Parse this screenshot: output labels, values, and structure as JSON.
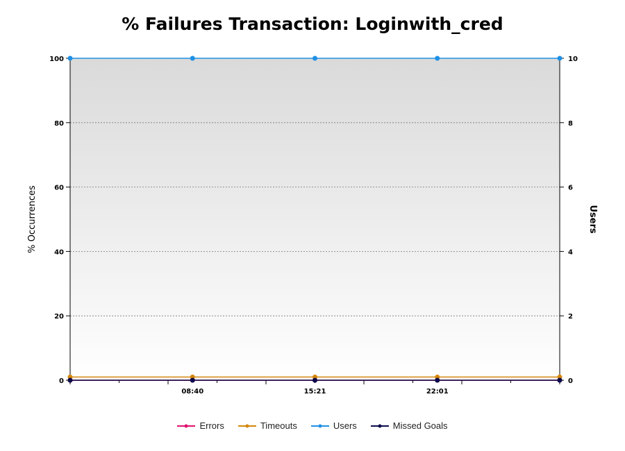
{
  "chart_data": {
    "type": "line",
    "title": "% Failures Transaction: Loginwith_cred",
    "ylabel": "% Occurrences",
    "y2label": "Users",
    "ylim": [
      0,
      100
    ],
    "y2lim": [
      0,
      10
    ],
    "yticks": [
      "0",
      "20",
      "40",
      "60",
      "80",
      "100"
    ],
    "y2ticks": [
      "0",
      "2",
      "4",
      "6",
      "8",
      "10"
    ],
    "xtick_labels": [
      "08:40",
      "15:21",
      "22:01"
    ],
    "grid": true,
    "legend_position": "bottom",
    "series": [
      {
        "name": "Errors",
        "axis": "left",
        "color": "#e0106e",
        "values": [
          0,
          0,
          0,
          0,
          0
        ]
      },
      {
        "name": "Timeouts",
        "axis": "left",
        "color": "#d4860a",
        "values": [
          1,
          1,
          1,
          1,
          1
        ]
      },
      {
        "name": "Users",
        "axis": "right",
        "color": "#1e90e6",
        "values": [
          10,
          10,
          10,
          10,
          10
        ]
      },
      {
        "name": "Missed Goals",
        "axis": "left",
        "color": "#0a0a4a",
        "values": [
          0,
          0,
          0,
          0,
          0
        ]
      }
    ]
  }
}
